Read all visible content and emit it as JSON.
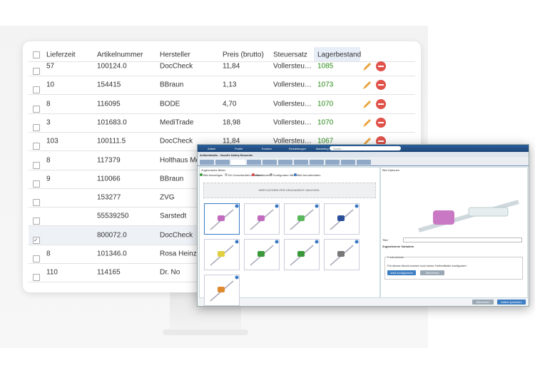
{
  "table": {
    "columns": [
      "Lieferzeit",
      "Artikelnummer",
      "Hersteller",
      "Preis (brutto)",
      "Steuersatz",
      "Lagerbestand"
    ],
    "rows": [
      [
        "57",
        "100124.0",
        "DocCheck",
        "11,84",
        "Vollersteu…",
        "1085"
      ],
      [
        "10",
        "154415",
        "BBraun",
        "1,13",
        "Vollersteu…",
        "1073"
      ],
      [
        "8",
        "116095",
        "BODE",
        "4,70",
        "Vollersteu…",
        "1070"
      ],
      [
        "3",
        "101683.0",
        "MediTrade",
        "18,98",
        "Vollersteu…",
        "1070"
      ],
      [
        "103",
        "100111.5",
        "DocCheck",
        "11,84",
        "Vollersteu…",
        "1067"
      ],
      [
        "8",
        "117379",
        "Holthaus Med",
        null,
        null,
        null
      ],
      [
        "9",
        "110066",
        "BBraun",
        null,
        null,
        null
      ],
      [
        null,
        "153277",
        "ZVG",
        null,
        null,
        null
      ],
      [
        null,
        "55539250",
        "Sarstedt",
        null,
        null,
        null
      ],
      [
        null,
        "800072.0",
        "DocCheck",
        null,
        null,
        null
      ],
      [
        "8",
        "101346.0",
        "Rosa Heinz",
        null,
        null,
        null
      ],
      [
        "110",
        "114165",
        "Dr. No",
        null,
        null,
        null
      ]
    ],
    "checked_row": 9
  },
  "window": {
    "menu": [
      "Artikel",
      "Profile",
      "Kunden",
      "Einstellungen",
      "Marketing"
    ],
    "search": "Suche...",
    "title": "Artikeldetails - Vasofix Safety Braunüle",
    "images_panel": {
      "title": "Zugeordnete Bilder",
      "actions": [
        "Bild hinzufügen",
        "Ein Vorschaubild zuweisen",
        "Bild löschen",
        "Konfigurator öffnen",
        "Bild herunterladen"
      ],
      "dropzone": "HIER DATEIEN PER DRAG&DROP ABLEGEN"
    },
    "options_panel": {
      "title": "Bild Optionen",
      "title_label": "Titel:",
      "variants_label": "Zugewiesene Varianten",
      "fields_title": "Freitextfelder",
      "fields_note": "Für dieses Modul wurden noch keine Freitextfelder konfiguriert",
      "configure": "Jetzt konfigurieren",
      "cancel": "Abbrechen"
    },
    "buttons": [
      "Abbrechen",
      "Artikel speichern"
    ]
  }
}
